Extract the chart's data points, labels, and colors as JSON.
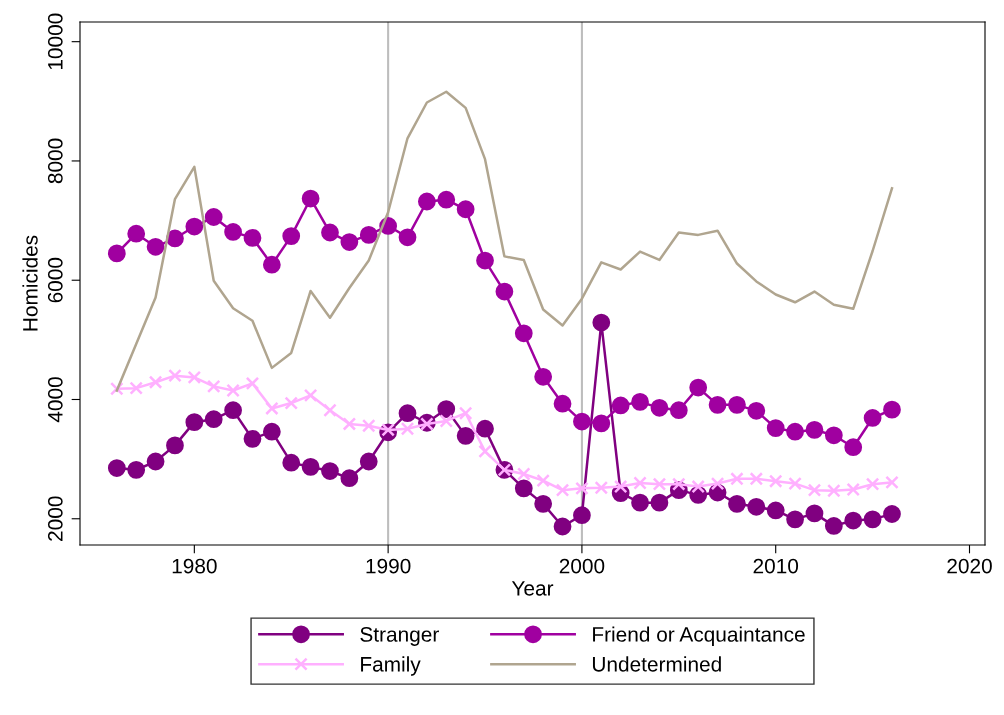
{
  "chart_data": {
    "type": "line",
    "xlabel": "Year",
    "ylabel": "Homicides",
    "x": [
      1976,
      1977,
      1978,
      1979,
      1980,
      1981,
      1982,
      1983,
      1984,
      1985,
      1986,
      1987,
      1988,
      1989,
      1990,
      1991,
      1992,
      1993,
      1994,
      1995,
      1996,
      1997,
      1998,
      1999,
      2000,
      2001,
      2002,
      2003,
      2004,
      2005,
      2006,
      2007,
      2008,
      2009,
      2010,
      2011,
      2012,
      2013,
      2014,
      2015,
      2016
    ],
    "series": [
      {
        "name": "Stranger",
        "color": "#800080",
        "marker": "circle",
        "values": [
          2850,
          2820,
          2960,
          3230,
          3620,
          3670,
          3820,
          3340,
          3460,
          2940,
          2870,
          2800,
          2680,
          2960,
          3450,
          3770,
          3610,
          3840,
          3390,
          3510,
          2820,
          2510,
          2250,
          1870,
          2060,
          5290,
          2430,
          2270,
          2270,
          2480,
          2400,
          2440,
          2250,
          2200,
          2140,
          1990,
          2090,
          1880,
          1970,
          1990,
          2080
        ]
      },
      {
        "name": "Friend or Acquaintance",
        "color": "#a000a0",
        "marker": "circle",
        "values": [
          6450,
          6780,
          6560,
          6700,
          6900,
          7060,
          6810,
          6710,
          6260,
          6740,
          7370,
          6800,
          6640,
          6760,
          6910,
          6720,
          7320,
          7350,
          7190,
          6330,
          5810,
          5110,
          4380,
          3930,
          3630,
          3600,
          3900,
          3960,
          3860,
          3820,
          4200,
          3910,
          3910,
          3810,
          3520,
          3460,
          3490,
          3400,
          3200,
          3690,
          3830
        ]
      },
      {
        "name": "Family",
        "color": "#ffb0ff",
        "marker": "cross",
        "values": [
          4180,
          4190,
          4290,
          4400,
          4370,
          4220,
          4150,
          4270,
          3850,
          3940,
          4070,
          3820,
          3590,
          3560,
          3490,
          3510,
          3590,
          3640,
          3770,
          3130,
          2820,
          2750,
          2640,
          2480,
          2510,
          2520,
          2540,
          2600,
          2580,
          2580,
          2540,
          2590,
          2670,
          2670,
          2630,
          2590,
          2480,
          2470,
          2490,
          2580,
          2610
        ]
      },
      {
        "name": "Undetermined",
        "color": "#b0a58f",
        "marker": "none",
        "values": [
          4150,
          4930,
          5710,
          7360,
          7900,
          5990,
          5530,
          5320,
          4530,
          4780,
          5820,
          5370,
          5870,
          6330,
          7140,
          8380,
          8980,
          9160,
          8890,
          8030,
          6400,
          6340,
          5510,
          5240,
          5690,
          6300,
          6180,
          6480,
          6340,
          6800,
          6760,
          6830,
          6280,
          5980,
          5760,
          5630,
          5810,
          5590,
          5520,
          6490,
          7540
        ]
      }
    ],
    "xlim": [
      1974.1,
      2020.8
    ],
    "xticks": [
      1980,
      1990,
      2000,
      2010,
      2020
    ],
    "ylim": [
      1560,
      10330
    ],
    "yticks": [
      2000,
      4000,
      6000,
      8000,
      10000
    ],
    "ref_lines": [
      {
        "axis": "x",
        "value": 1990,
        "color": "#bdbdbd"
      },
      {
        "axis": "x",
        "value": 2000,
        "color": "#bdbdbd"
      }
    ],
    "grid": false,
    "legend": "bottom",
    "line_style": "solid"
  }
}
